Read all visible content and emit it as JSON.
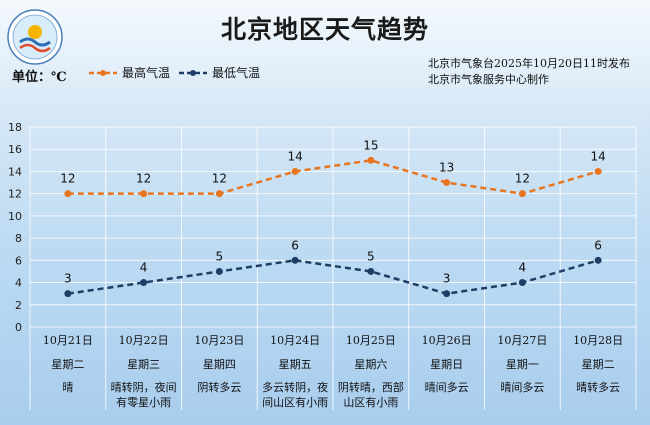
{
  "header": {
    "title": "北京地区天气趋势",
    "unit_label": "单位：℃",
    "issuer_line1": "北京市气象台2025年10月20日11时发布",
    "issuer_line2": "北京市气象服务中心制作"
  },
  "colors": {
    "high": "#e8751f",
    "low": "#1f3e66"
  },
  "days": [
    {
      "date": "10月21日",
      "weekday": "星期二",
      "condition": [
        "晴"
      ]
    },
    {
      "date": "10月22日",
      "weekday": "星期三",
      "condition": [
        "晴转阴，夜间",
        "有零星小雨"
      ]
    },
    {
      "date": "10月23日",
      "weekday": "星期四",
      "condition": [
        "阴转多云"
      ]
    },
    {
      "date": "10月24日",
      "weekday": "星期五",
      "condition": [
        "多云转阴，夜",
        "间山区有小雨"
      ]
    },
    {
      "date": "10月25日",
      "weekday": "星期六",
      "condition": [
        "阴转晴，西部",
        "山区有小雨"
      ]
    },
    {
      "date": "10月26日",
      "weekday": "星期日",
      "condition": [
        "晴间多云"
      ]
    },
    {
      "date": "10月27日",
      "weekday": "星期一",
      "condition": [
        "晴间多云"
      ]
    },
    {
      "date": "10月28日",
      "weekday": "星期二",
      "condition": [
        "晴转多云"
      ]
    }
  ],
  "chart_data": {
    "type": "line",
    "categories": [
      "10月21日",
      "10月22日",
      "10月23日",
      "10月24日",
      "10月25日",
      "10月26日",
      "10月27日",
      "10月28日"
    ],
    "series": [
      {
        "name": "最高气温",
        "values": [
          12,
          12,
          12,
          14,
          15,
          13,
          12,
          14
        ]
      },
      {
        "name": "最低气温",
        "values": [
          3,
          4,
          5,
          6,
          5,
          3,
          4,
          6
        ]
      }
    ],
    "ylim": [
      0,
      18
    ],
    "yticks": [
      0,
      2,
      4,
      6,
      8,
      10,
      12,
      14,
      16,
      18
    ],
    "grid": true,
    "legend_position": "top-left"
  }
}
